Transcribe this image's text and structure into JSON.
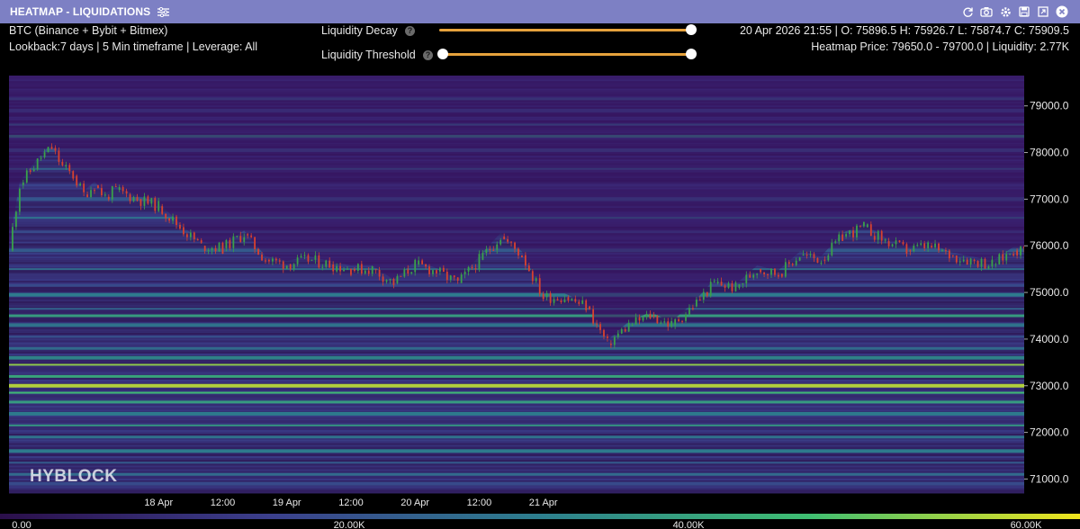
{
  "window": {
    "title": "HEATMAP - LIQUIDATIONS",
    "icons": [
      "settings-sliders-icon",
      "refresh-icon",
      "camera-icon",
      "gear-icon",
      "save-icon",
      "expand-icon",
      "close-icon"
    ]
  },
  "header": {
    "symbol": "BTC (Binance + Bybit + Bitmex)",
    "lookback": "Lookback:7 days | 5 Min timeframe | Leverage: All",
    "ohlc": "20 Apr 2026 21:55 | O: 75896.5 H: 75926.7 L: 75874.7 C: 75909.5",
    "heatmap_info": "Heatmap Price: 79650.0 - 79700.0 | Liquidity: 2.77K"
  },
  "controls": {
    "decay_label": "Liquidity Decay",
    "threshold_label": "Liquidity Threshold",
    "decay_value": 1.0,
    "threshold_value": 0.0
  },
  "watermark": "HYBLOCK",
  "colors": {
    "background": "#000000",
    "titlebar": "#7d80c4",
    "slider": "#e6a23c",
    "candle_up": "#3aa14a",
    "candle_down": "#d8412f"
  },
  "chart_data": {
    "type": "heatmap",
    "title": "",
    "y_ticks": [
      "79000.0",
      "78000.0",
      "77000.0",
      "76000.0",
      "75000.0",
      "74000.0",
      "73000.0",
      "72000.0",
      "71000.0"
    ],
    "ylim": [
      70700,
      79650
    ],
    "x_ticks": [
      "18 Apr",
      "12:00",
      "19 Apr",
      "12:00",
      "20 Apr",
      "12:00",
      "21 Apr"
    ],
    "colorbar_ticks": [
      "0.00",
      "20.00K",
      "40.00K",
      "60.00K"
    ],
    "colorbar_range": [
      0,
      60000
    ],
    "price_series": {
      "t_hours": [
        0,
        2,
        4,
        6,
        8,
        10,
        12,
        14,
        16,
        18,
        20,
        22,
        24,
        28,
        32,
        36,
        40,
        44,
        48,
        52,
        56,
        60,
        64,
        68,
        72,
        76,
        80,
        84,
        88,
        92,
        96,
        100,
        104,
        108,
        112,
        116,
        120,
        124,
        128,
        132,
        136,
        140,
        144,
        148,
        152,
        156,
        160,
        164,
        168,
        172,
        176,
        180,
        184,
        188,
        190
      ],
      "close": [
        75900,
        77300,
        77600,
        77900,
        78100,
        77700,
        77500,
        77100,
        77300,
        77050,
        77200,
        77100,
        77000,
        76850,
        76400,
        76000,
        75950,
        76250,
        75700,
        75600,
        75700,
        75600,
        75500,
        75500,
        75200,
        75600,
        75450,
        75200,
        75700,
        76200,
        75800,
        74900,
        74900,
        74700,
        73900,
        74300,
        74500,
        74300,
        74700,
        75200,
        75100,
        75500,
        75400,
        75800,
        75700,
        76200,
        76400,
        76100,
        75900,
        76000,
        75800,
        75700,
        75600,
        75900,
        75900
      ]
    },
    "bands": [
      {
        "price": 79550,
        "value": 14000
      },
      {
        "price": 79150,
        "value": 22000
      },
      {
        "price": 78900,
        "value": 18000
      },
      {
        "price": 78600,
        "value": 26000
      },
      {
        "price": 78350,
        "value": 35000
      },
      {
        "price": 78050,
        "value": 20000
      },
      {
        "price": 77650,
        "value": 24000
      },
      {
        "price": 77300,
        "value": 16000
      },
      {
        "price": 77000,
        "value": 21000
      },
      {
        "price": 76600,
        "value": 28000
      },
      {
        "price": 76300,
        "value": 18000
      },
      {
        "price": 75900,
        "value": 22000
      },
      {
        "price": 75500,
        "value": 26000
      },
      {
        "price": 75150,
        "value": 18000
      },
      {
        "price": 74950,
        "value": 30000
      },
      {
        "price": 74650,
        "value": 24000
      },
      {
        "price": 74500,
        "value": 38000
      },
      {
        "price": 74300,
        "value": 28000
      },
      {
        "price": 74050,
        "value": 20000
      },
      {
        "price": 73800,
        "value": 26000
      },
      {
        "price": 73600,
        "value": 32000
      },
      {
        "price": 73450,
        "value": 52000
      },
      {
        "price": 73200,
        "value": 40000
      },
      {
        "price": 73000,
        "value": 55000
      },
      {
        "price": 72850,
        "value": 45000
      },
      {
        "price": 72650,
        "value": 38000
      },
      {
        "price": 72400,
        "value": 30000
      },
      {
        "price": 72150,
        "value": 36000
      },
      {
        "price": 71900,
        "value": 28000
      },
      {
        "price": 71600,
        "value": 30000
      },
      {
        "price": 71350,
        "value": 22000
      },
      {
        "price": 71100,
        "value": 26000
      },
      {
        "price": 70900,
        "value": 18000
      }
    ]
  }
}
